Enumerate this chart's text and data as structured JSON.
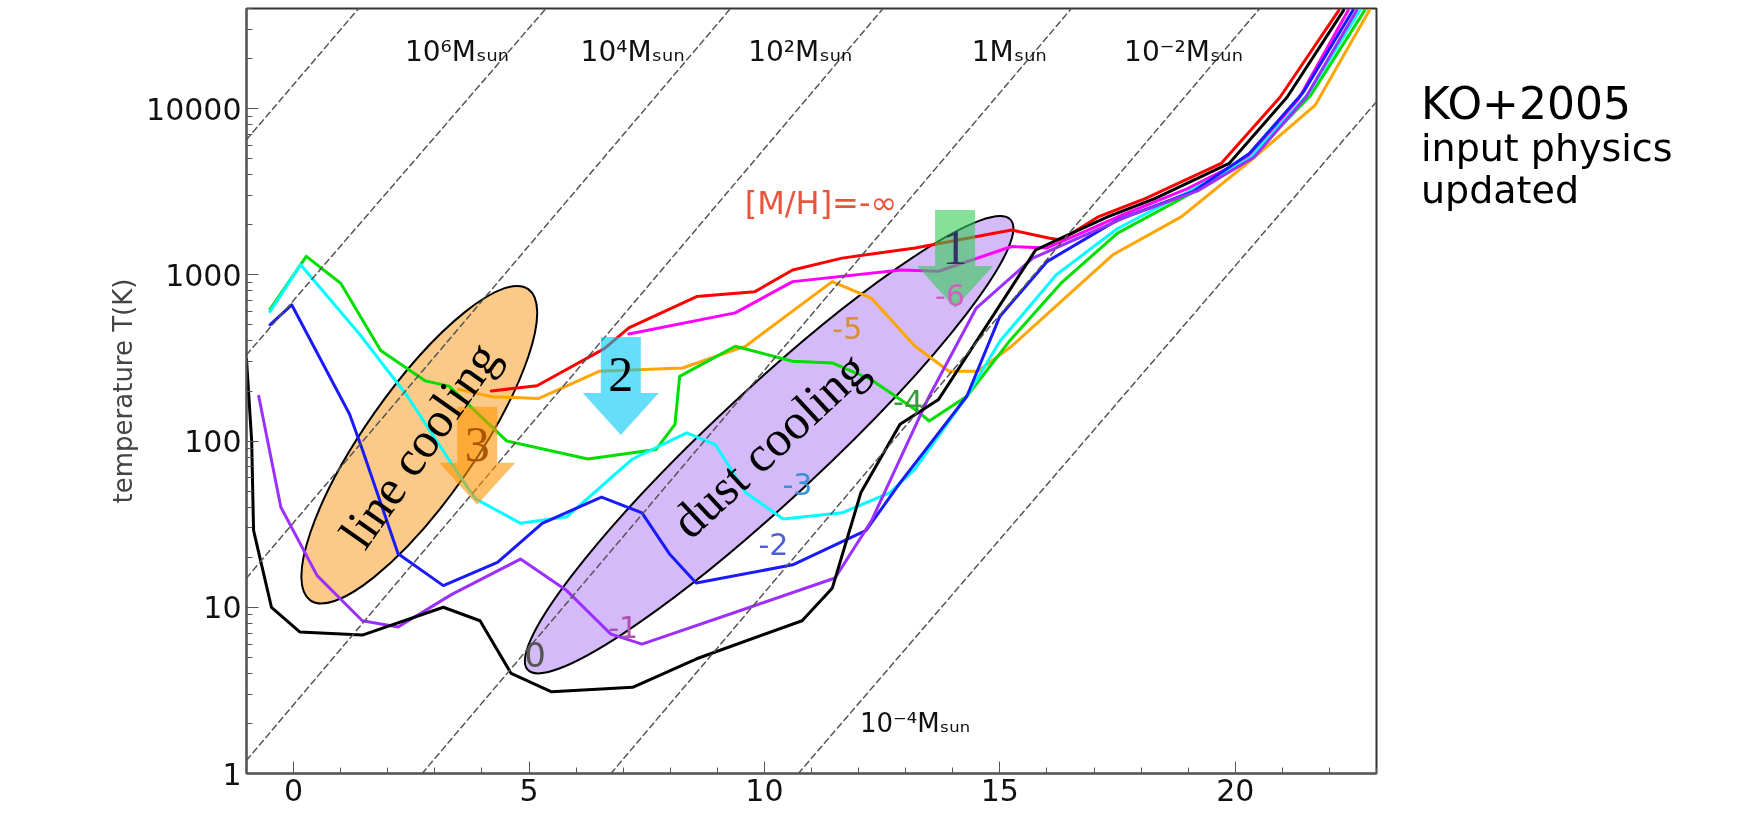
{
  "chart_data": {
    "type": "line",
    "ylabel": "temperature T(K)",
    "log": "y",
    "grid": false,
    "xlim": [
      -1,
      23
    ],
    "xticks": [
      0,
      5,
      10,
      15,
      20
    ],
    "ylim": [
      1,
      40000
    ],
    "yticks": [
      1,
      10,
      100,
      1000,
      10000
    ],
    "series": [
      {
        "color": "#ff0000",
        "x": [
          4.2,
          5.17,
          6.6,
          7.12,
          8.56,
          9.79,
          10.6,
          11.65,
          13.2,
          15.25,
          16.06,
          16.3,
          17.1,
          18.1,
          19.7,
          20.95,
          22.2
        ],
        "values": [
          200,
          215,
          360,
          480,
          740,
          790,
          1070,
          1260,
          1450,
          1860,
          1660,
          1620,
          2240,
          2880,
          4680,
          11700,
          39000
        ]
      },
      {
        "color": "#ff00ff",
        "x": [
          7.12,
          9.38,
          10.6,
          12.9,
          13.7,
          15.25,
          16.0,
          16.8,
          17.6,
          19.0,
          20.25,
          21.35,
          22.4
        ],
        "values": [
          440,
          590,
          910,
          1070,
          1050,
          1480,
          1450,
          1820,
          2290,
          3310,
          5000,
          11500,
          39000
        ]
      },
      {
        "color": "#ffa500",
        "x": [
          3.5,
          4.2,
          5.2,
          6.5,
          8.26,
          9.6,
          11.44,
          12.27,
          13.2,
          13.92,
          14.53,
          15.25,
          16.38,
          17.4,
          18.86,
          20.38,
          21.7,
          22.85
        ],
        "values": [
          205,
          185,
          180,
          263,
          275,
          372,
          910,
          724,
          372,
          263,
          263,
          372,
          724,
          1320,
          2240,
          5010,
          10500,
          39000
        ]
      },
      {
        "color": "#00dd00",
        "x": [
          -0.5,
          0.27,
          1.0,
          1.85,
          2.8,
          3.3,
          4.53,
          6.25,
          7.7,
          8.1,
          8.2,
          9.38,
          10.6,
          11.44,
          12.27,
          13.2,
          13.5,
          14.3,
          15.2,
          16.3,
          17.5,
          19.0,
          20.3,
          21.6,
          22.75
        ],
        "values": [
          620,
          1290,
          890,
          350,
          230,
          214,
          100,
          78,
          89,
          126,
          245,
          372,
          302,
          295,
          234,
          155,
          132,
          186,
          398,
          891,
          1780,
          3020,
          5010,
          12000,
          39000
        ]
      },
      {
        "color": "#00ffff",
        "x": [
          -0.5,
          0.15,
          1.38,
          2.42,
          3.37,
          3.86,
          4.82,
          5.8,
          7.2,
          8.35,
          8.96,
          9.6,
          10.4,
          11.65,
          12.67,
          13.2,
          14.3,
          15.0,
          16.2,
          17.5,
          19.0,
          20.3,
          21.55,
          22.65
        ],
        "values": [
          600,
          1150,
          447,
          186,
          72,
          45,
          32,
          35,
          78,
          112,
          95,
          49,
          34,
          37,
          49,
          68,
          186,
          398,
          1000,
          1900,
          3160,
          5010,
          12300,
          39000
        ]
      },
      {
        "color": "#1a1aff",
        "x": [
          -0.5,
          -0.04,
          1.19,
          1.46,
          2.22,
          3.18,
          4.33,
          5.28,
          6.54,
          7.4,
          7.98,
          8.55,
          10.6,
          12.16,
          12.88,
          14.3,
          15.0,
          16.0,
          17.5,
          19.1,
          20.3,
          21.45,
          22.5
        ],
        "values": [
          500,
          660,
          145,
          89,
          21,
          13.5,
          18.6,
          32,
          46,
          37,
          21,
          14,
          18,
          29,
          56,
          186,
          562,
          1200,
          2140,
          3160,
          5370,
          12600,
          39000
        ]
      },
      {
        "color": "#9b30ff",
        "x": [
          -0.74,
          -0.27,
          0.5,
          1.46,
          2.22,
          3.37,
          4.82,
          5.8,
          6.74,
          7.4,
          9.6,
          11.5,
          12.27,
          13.5,
          14.5,
          15.7,
          17.7,
          19.2,
          20.4,
          21.5,
          22.58
        ],
        "values": [
          186,
          40,
          15.5,
          8.3,
          7.6,
          12,
          19.5,
          12.6,
          6.9,
          6,
          9.8,
          15,
          33,
          186,
          631,
          1260,
          2240,
          3200,
          5100,
          11700,
          39000
        ]
      },
      {
        "color": "#000000",
        "x": [
          -1,
          -0.89,
          -0.85,
          -0.47,
          0.13,
          1.46,
          3.18,
          3.96,
          4.62,
          5.48,
          7.2,
          8.56,
          10.8,
          11.44,
          12.05,
          12.88,
          13.7,
          15.76,
          16.3,
          17.3,
          18.3,
          19.87,
          21.1,
          22.3
        ],
        "values": [
          310,
          100,
          29,
          10,
          7.1,
          6.8,
          10,
          8.3,
          4,
          3.1,
          3.3,
          4.9,
          8.3,
          13,
          49,
          126,
          178,
          1410,
          1660,
          2240,
          2880,
          4680,
          11700,
          39000
        ]
      },
      {
        "color": "#555555",
        "line_style": "dashed",
        "x": [
          -1,
          1.38
        ],
        "values": [
          6500,
          40000
        ]
      },
      {
        "color": "#555555",
        "line_style": "dashed",
        "x": [
          -1,
          5.36
        ],
        "values": [
          330,
          40000
        ]
      },
      {
        "color": "#555555",
        "line_style": "dashed",
        "x": [
          -1,
          9.28
        ],
        "values": [
          15,
          40000
        ]
      },
      {
        "color": "#555555",
        "line_style": "dashed",
        "x": [
          -1,
          12.52
        ],
        "values": [
          1.2,
          40000
        ]
      },
      {
        "color": "#555555",
        "line_style": "dashed",
        "x": [
          2.73,
          16.52
        ],
        "values": [
          1,
          40000
        ]
      },
      {
        "color": "#555555",
        "line_style": "dashed",
        "x": [
          6.74,
          20.52
        ],
        "values": [
          1,
          40000
        ]
      },
      {
        "color": "#555555",
        "line_style": "dashed",
        "x": [
          10.72,
          23
        ],
        "values": [
          1,
          11000
        ]
      }
    ],
    "annotations": [
      "10⁶Mₛᵤₙ",
      "10⁴Mₛᵤₙ",
      "10²Mₛᵤₙ",
      "1Mₛᵤₙ",
      "10⁻²Mₛᵤₙ",
      "10⁻⁴Mₛᵤₙ",
      "[M/H]=-∞",
      "-6",
      "-5",
      "-4",
      "-3",
      "-2",
      "-1",
      "0",
      "line cooling",
      "dust cooling",
      "1",
      "2",
      "3",
      "KO+2005",
      "input physics\nupdated"
    ]
  }
}
